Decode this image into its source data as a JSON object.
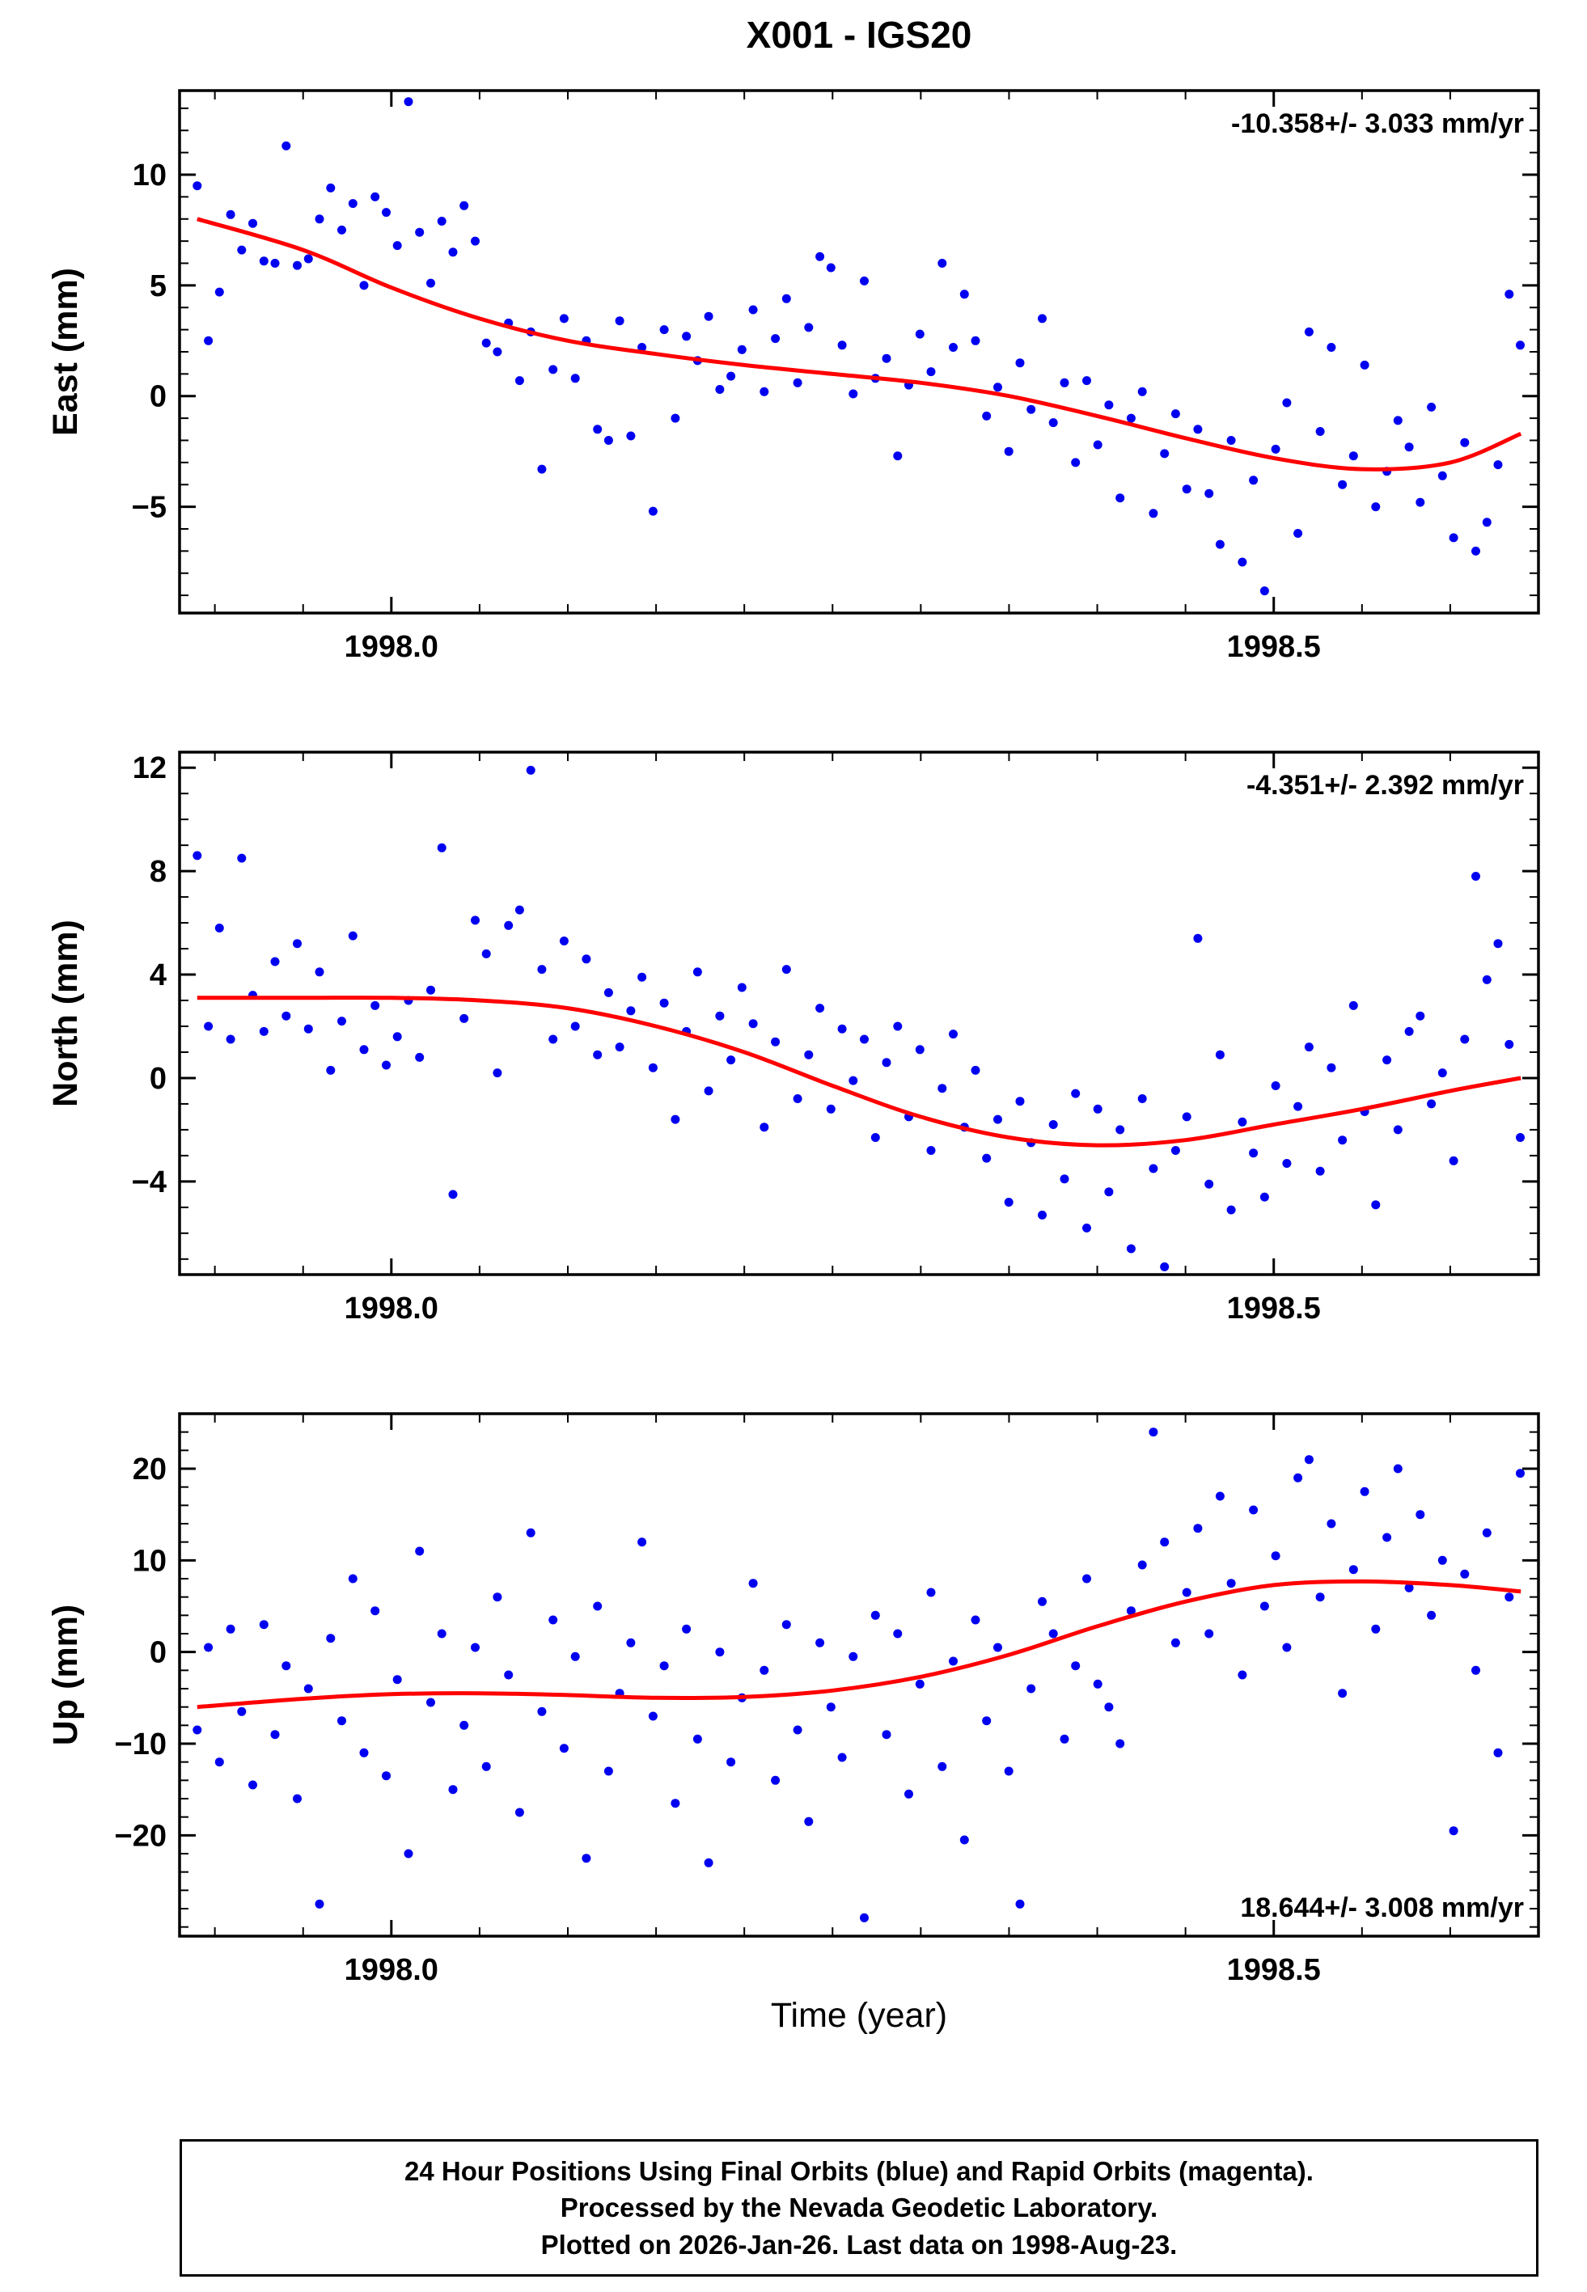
{
  "title": "X001 - IGS20",
  "xlabel": "Time (year)",
  "footer": {
    "line1": "24 Hour Positions Using Final Orbits (blue) and Rapid Orbits (magenta).",
    "line2": "Processed by the Nevada Geodetic Laboratory.",
    "line3": "Plotted on 2026-Jan-26. Last data on 1998-Aug-23."
  },
  "colors": {
    "points": "#0000f0",
    "trend": "#ff0000",
    "frame": "#000000"
  },
  "chart_data": [
    {
      "id": "east",
      "type": "scatter",
      "ylabel": "East (mm)",
      "annotation": "-10.358+/- 3.033 mm/yr",
      "annotation_pos": "top-right",
      "xlim": [
        1997.88,
        1998.65
      ],
      "ylim": [
        -9.8,
        13.8
      ],
      "xticks": [
        1998.0,
        1998.5
      ],
      "xtick_labels": [
        "1998.0",
        "1998.5"
      ],
      "x_minor": 0.05,
      "yticks": [
        -5,
        0,
        5,
        10
      ],
      "y_minor": 1,
      "scatter": {
        "x_start": 1997.89,
        "x_step": 0.0063,
        "y": [
          9.5,
          2.5,
          4.7,
          8.2,
          6.6,
          7.8,
          6.1,
          6.0,
          11.3,
          5.9,
          6.2,
          8.0,
          9.4,
          7.5,
          8.7,
          5.0,
          9.0,
          8.3,
          6.8,
          13.3,
          7.4,
          5.1,
          7.9,
          6.5,
          8.6,
          7.0,
          2.4,
          2.0,
          3.3,
          0.7,
          2.9,
          -3.3,
          1.2,
          3.5,
          0.8,
          2.5,
          -1.5,
          -2.0,
          3.4,
          -1.8,
          2.2,
          -5.2,
          3.0,
          -1.0,
          2.7,
          1.6,
          3.6,
          0.3,
          0.9,
          2.1,
          3.9,
          0.2,
          2.6,
          4.4,
          0.6,
          3.1,
          6.3,
          5.8,
          2.3,
          0.1,
          5.2,
          0.8,
          1.7,
          -2.7,
          0.5,
          2.8,
          1.1,
          6.0,
          2.2,
          4.6,
          2.5,
          -0.9,
          0.4,
          -2.5,
          1.5,
          -0.6,
          3.5,
          -1.2,
          0.6,
          -3.0,
          0.7,
          -2.2,
          -0.4,
          -4.6,
          -1.0,
          0.2,
          -5.3,
          -2.6,
          -0.8,
          -4.2,
          -1.5,
          -4.4,
          -6.7,
          -2.0,
          -7.5,
          -3.8,
          -8.8,
          -2.4,
          -0.3,
          -6.2,
          2.9,
          -1.6,
          2.2,
          -4.0,
          -2.7,
          1.4,
          -5.0,
          -3.4,
          -1.1,
          -2.3,
          -4.8,
          -0.5,
          -3.6,
          -6.4,
          -2.1,
          -7.0,
          -5.7,
          -3.1,
          4.6,
          2.3
        ]
      },
      "trend": {
        "x": [
          1997.89,
          1997.95,
          1998.0,
          1998.05,
          1998.1,
          1998.15,
          1998.2,
          1998.25,
          1998.3,
          1998.35,
          1998.4,
          1998.45,
          1998.5,
          1998.55,
          1998.6,
          1998.64
        ],
        "y": [
          8.0,
          6.6,
          4.9,
          3.5,
          2.5,
          1.9,
          1.4,
          1.0,
          0.6,
          0.0,
          -0.9,
          -1.9,
          -2.8,
          -3.3,
          -3.0,
          -1.7
        ]
      }
    },
    {
      "id": "north",
      "type": "scatter",
      "ylabel": "North (mm)",
      "annotation": "-4.351+/- 2.392 mm/yr",
      "annotation_pos": "top-right",
      "xlim": [
        1997.88,
        1998.65
      ],
      "ylim": [
        -7.6,
        12.6
      ],
      "xticks": [
        1998.0,
        1998.5
      ],
      "xtick_labels": [
        "1998.0",
        "1998.5"
      ],
      "x_minor": 0.05,
      "yticks": [
        -4,
        0,
        4,
        8,
        12
      ],
      "y_minor": 1,
      "scatter": {
        "x_start": 1997.89,
        "x_step": 0.0063,
        "y": [
          8.6,
          2.0,
          5.8,
          1.5,
          8.5,
          3.2,
          1.8,
          4.5,
          2.4,
          5.2,
          1.9,
          4.1,
          0.3,
          2.2,
          5.5,
          1.1,
          2.8,
          0.5,
          1.6,
          3.0,
          0.8,
          3.4,
          8.9,
          -4.5,
          2.3,
          6.1,
          4.8,
          0.2,
          5.9,
          6.5,
          11.9,
          4.2,
          1.5,
          5.3,
          2.0,
          4.6,
          0.9,
          3.3,
          1.2,
          2.6,
          3.9,
          0.4,
          2.9,
          -1.6,
          1.8,
          4.1,
          -0.5,
          2.4,
          0.7,
          3.5,
          2.1,
          -1.9,
          1.4,
          4.2,
          -0.8,
          0.9,
          2.7,
          -1.2,
          1.9,
          -0.1,
          1.5,
          -2.3,
          0.6,
          2.0,
          -1.5,
          1.1,
          -2.8,
          -0.4,
          1.7,
          -1.9,
          0.3,
          -3.1,
          -1.6,
          -4.8,
          -0.9,
          -2.5,
          -5.3,
          -1.8,
          -3.9,
          -0.6,
          -5.8,
          -1.2,
          -4.4,
          -2.0,
          -6.6,
          -0.8,
          -3.5,
          -7.3,
          -2.8,
          -1.5,
          5.4,
          -4.1,
          0.9,
          -5.1,
          -1.7,
          -2.9,
          -4.6,
          -0.3,
          -3.3,
          -1.1,
          1.2,
          -3.6,
          0.4,
          -2.4,
          2.8,
          -1.3,
          -4.9,
          0.7,
          -2.0,
          1.8,
          2.4,
          -1.0,
          0.2,
          -3.2,
          1.5,
          7.8,
          3.8,
          5.2,
          1.3,
          -2.3
        ]
      },
      "trend": {
        "x": [
          1997.89,
          1997.95,
          1998.0,
          1998.05,
          1998.1,
          1998.15,
          1998.2,
          1998.25,
          1998.3,
          1998.35,
          1998.4,
          1998.45,
          1998.5,
          1998.55,
          1998.6,
          1998.64
        ],
        "y": [
          3.1,
          3.1,
          3.1,
          3.0,
          2.7,
          2.0,
          1.0,
          -0.3,
          -1.5,
          -2.3,
          -2.6,
          -2.4,
          -1.8,
          -1.2,
          -0.5,
          0.0
        ]
      }
    },
    {
      "id": "up",
      "type": "scatter",
      "ylabel": "Up (mm)",
      "annotation": "18.644+/- 3.008 mm/yr",
      "annotation_pos": "bottom-right",
      "xlim": [
        1997.88,
        1998.65
      ],
      "ylim": [
        -31,
        26
      ],
      "xticks": [
        1998.0,
        1998.5
      ],
      "xtick_labels": [
        "1998.0",
        "1998.5"
      ],
      "x_minor": 0.05,
      "yticks": [
        -20,
        -10,
        0,
        10,
        20
      ],
      "y_minor": 2,
      "scatter": {
        "x_start": 1997.89,
        "x_step": 0.0063,
        "y": [
          -8.5,
          0.5,
          -12.0,
          2.5,
          -6.5,
          -14.5,
          3.0,
          -9.0,
          -1.5,
          -16.0,
          -4.0,
          -27.5,
          1.5,
          -7.5,
          8.0,
          -11.0,
          4.5,
          -13.5,
          -3.0,
          -22.0,
          11.0,
          -5.5,
          2.0,
          -15.0,
          -8.0,
          0.5,
          -12.5,
          6.0,
          -2.5,
          -17.5,
          13.0,
          -6.5,
          3.5,
          -10.5,
          -0.5,
          -22.5,
          5.0,
          -13.0,
          -4.5,
          1.0,
          12.0,
          -7.0,
          -1.5,
          -16.5,
          2.5,
          -9.5,
          -23.0,
          0.0,
          -12.0,
          -5.0,
          7.5,
          -2.0,
          -14.0,
          3.0,
          -8.5,
          -18.5,
          1.0,
          -6.0,
          -11.5,
          -0.5,
          -29.0,
          4.0,
          -9.0,
          2.0,
          -15.5,
          -3.5,
          6.5,
          -12.5,
          -1.0,
          -20.5,
          3.5,
          -7.5,
          0.5,
          -13.0,
          -27.5,
          -4.0,
          5.5,
          2.0,
          -9.5,
          -1.5,
          8.0,
          -3.5,
          -6.0,
          -10.0,
          4.5,
          9.5,
          24.0,
          12.0,
          1.0,
          6.5,
          13.5,
          2.0,
          17.0,
          7.5,
          -2.5,
          15.5,
          5.0,
          10.5,
          0.5,
          19.0,
          21.0,
          6.0,
          14.0,
          -4.5,
          9.0,
          17.5,
          2.5,
          12.5,
          20.0,
          7.0,
          15.0,
          4.0,
          10.0,
          -19.5,
          8.5,
          -2.0,
          13.0,
          -11.0,
          6.0,
          19.5
        ]
      },
      "trend": {
        "x": [
          1997.89,
          1997.95,
          1998.0,
          1998.05,
          1998.1,
          1998.15,
          1998.2,
          1998.25,
          1998.3,
          1998.35,
          1998.4,
          1998.45,
          1998.5,
          1998.55,
          1998.6,
          1998.64
        ],
        "y": [
          -6.0,
          -5.1,
          -4.6,
          -4.5,
          -4.7,
          -5.0,
          -4.9,
          -4.2,
          -2.7,
          -0.3,
          2.8,
          5.5,
          7.3,
          7.7,
          7.3,
          6.6
        ]
      }
    }
  ]
}
